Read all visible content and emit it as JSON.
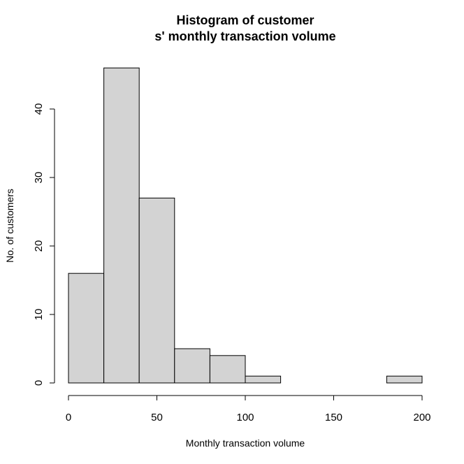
{
  "chart_data": {
    "type": "bar",
    "title_lines": [
      "Histogram of customer",
      "s' monthly transaction volume"
    ],
    "xlabel": "Monthly transaction volume",
    "ylabel": "No. of customers",
    "bins": [
      {
        "start": 0,
        "end": 20,
        "count": 16
      },
      {
        "start": 20,
        "end": 40,
        "count": 46
      },
      {
        "start": 40,
        "end": 60,
        "count": 27
      },
      {
        "start": 60,
        "end": 80,
        "count": 5
      },
      {
        "start": 80,
        "end": 100,
        "count": 4
      },
      {
        "start": 100,
        "end": 120,
        "count": 1
      },
      {
        "start": 120,
        "end": 140,
        "count": 0
      },
      {
        "start": 140,
        "end": 160,
        "count": 0
      },
      {
        "start": 160,
        "end": 180,
        "count": 0
      },
      {
        "start": 180,
        "end": 200,
        "count": 1
      }
    ],
    "xticks": [
      0,
      50,
      100,
      150,
      200
    ],
    "yticks": [
      0,
      10,
      20,
      30,
      40
    ],
    "xlim": [
      0,
      200
    ],
    "ylim": [
      0,
      46
    ],
    "grid": false,
    "legend": "none",
    "bar_color": "#d3d3d3"
  }
}
